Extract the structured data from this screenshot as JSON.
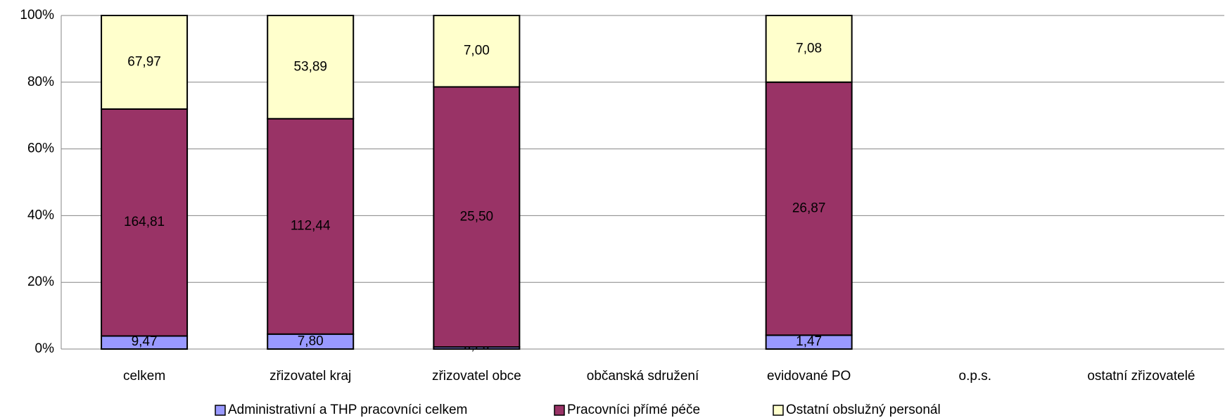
{
  "chart_data": {
    "type": "bar",
    "stacked": "percent",
    "categories": [
      "celkem",
      "zřizovatel kraj",
      "zřizovatel obce",
      "občanská sdružení",
      "evidované PO",
      "o.p.s.",
      "ostatní zřizovatelé"
    ],
    "series": [
      {
        "name": "Administrativní a THP pracovníci celkem",
        "color": "#9999ff",
        "values": [
          9.47,
          7.8,
          0.2,
          null,
          1.47,
          null,
          null
        ],
        "value_labels": [
          "9,47",
          "7,80",
          "0,20",
          null,
          "1,47",
          null,
          null
        ]
      },
      {
        "name": "Pracovníci přímé péče",
        "color": "#993366",
        "values": [
          164.81,
          112.44,
          25.5,
          null,
          26.87,
          null,
          null
        ],
        "value_labels": [
          "164,81",
          "112,44",
          "25,50",
          null,
          "26,87",
          null,
          null
        ]
      },
      {
        "name": "Ostatní obslužný personál",
        "color": "#ffffcc",
        "values": [
          67.97,
          53.89,
          7.0,
          null,
          7.08,
          null,
          null
        ],
        "value_labels": [
          "67,97",
          "53,89",
          "7,00",
          null,
          "7,08",
          null,
          null
        ]
      }
    ],
    "ylim": [
      0,
      100
    ],
    "yticks": [
      {
        "value": 0,
        "label": "0%"
      },
      {
        "value": 20,
        "label": "20%"
      },
      {
        "value": 40,
        "label": "40%"
      },
      {
        "value": 60,
        "label": "60%"
      },
      {
        "value": 80,
        "label": "80%"
      },
      {
        "value": 100,
        "label": "100%"
      }
    ],
    "grid": true,
    "legend": "bottom"
  }
}
